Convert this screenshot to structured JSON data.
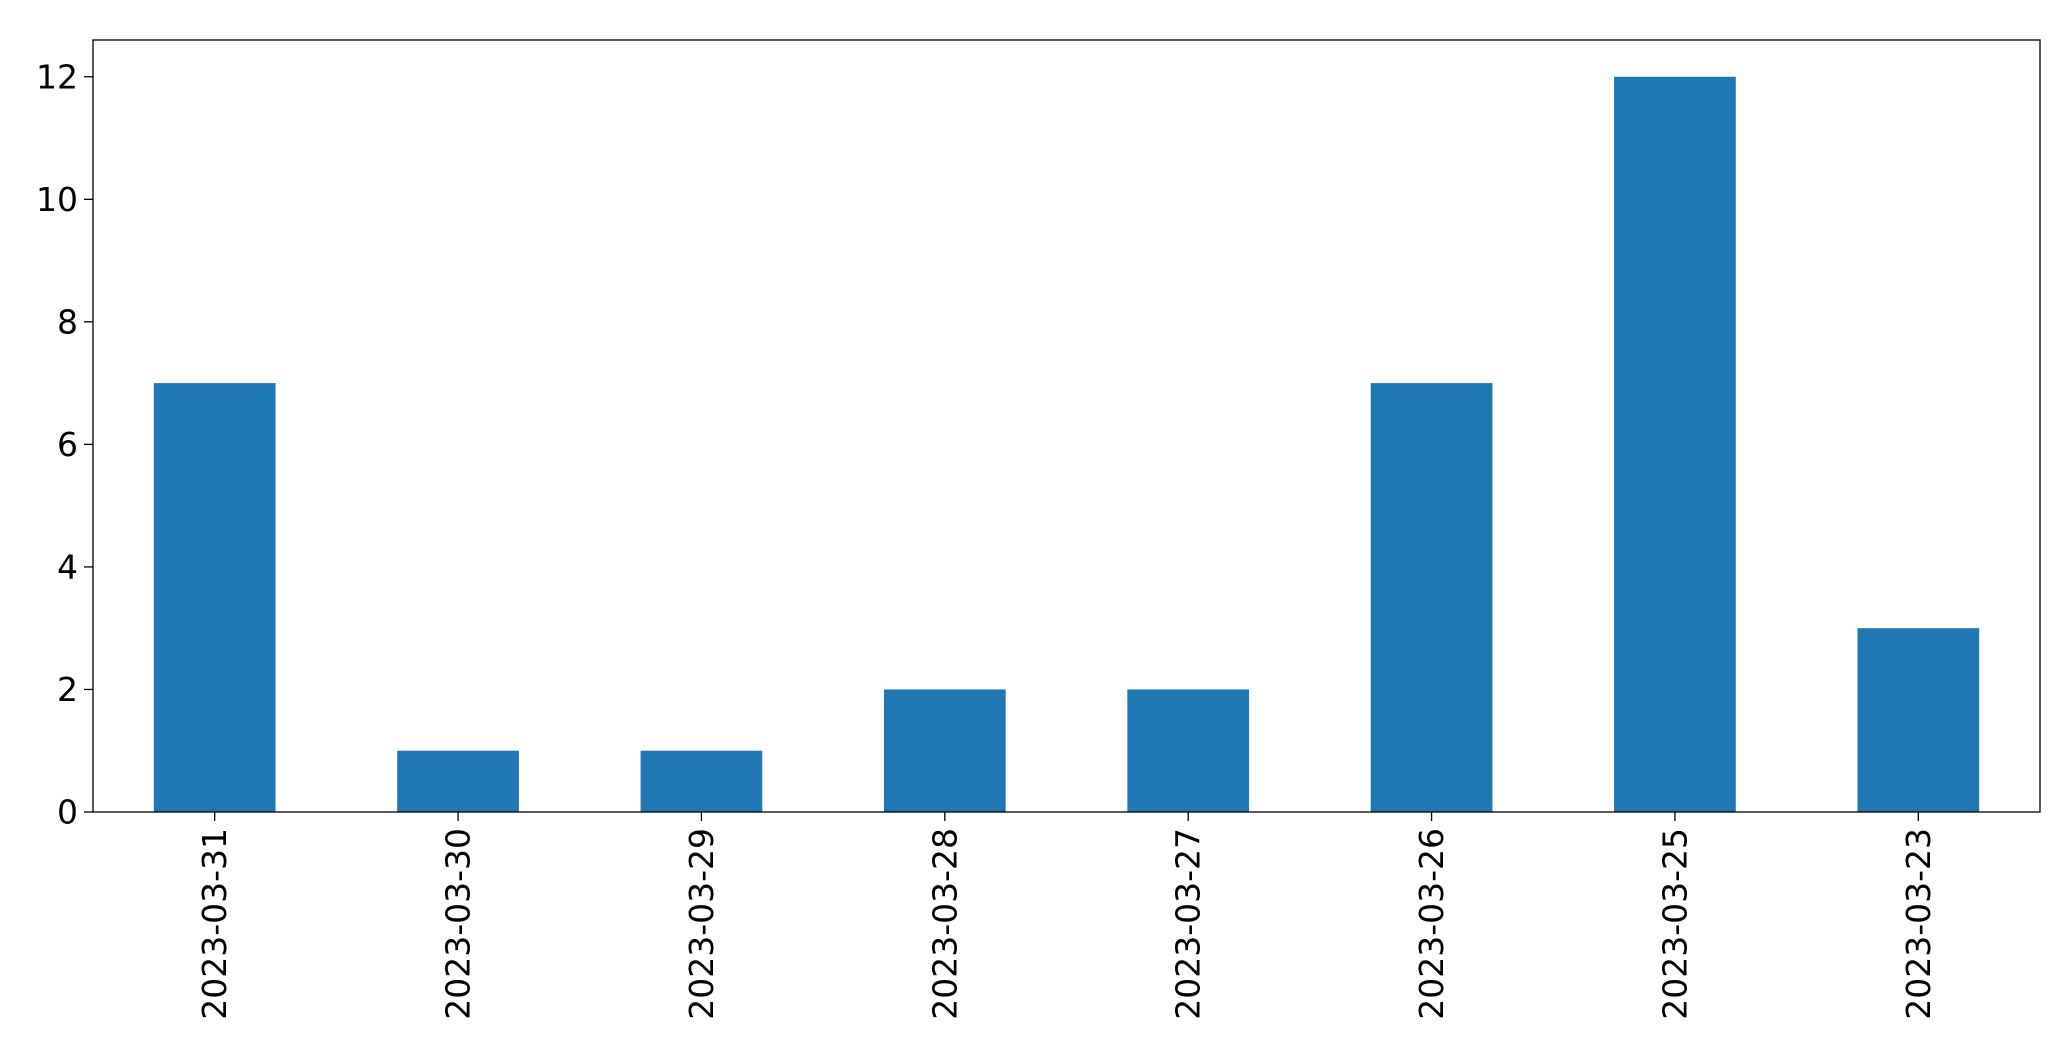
{
  "chart_data": {
    "type": "bar",
    "categories": [
      "2023-03-31",
      "2023-03-30",
      "2023-03-29",
      "2023-03-28",
      "2023-03-27",
      "2023-03-26",
      "2023-03-25",
      "2023-03-23"
    ],
    "values": [
      7,
      1,
      1,
      2,
      2,
      7,
      12,
      3
    ],
    "title": "",
    "xlabel": "",
    "ylabel": "",
    "ylim": [
      0,
      12.6
    ],
    "yticks": [
      0,
      2,
      4,
      6,
      8,
      10,
      12
    ],
    "grid": false,
    "legend": "none",
    "bar_color": "#1f77b4"
  }
}
